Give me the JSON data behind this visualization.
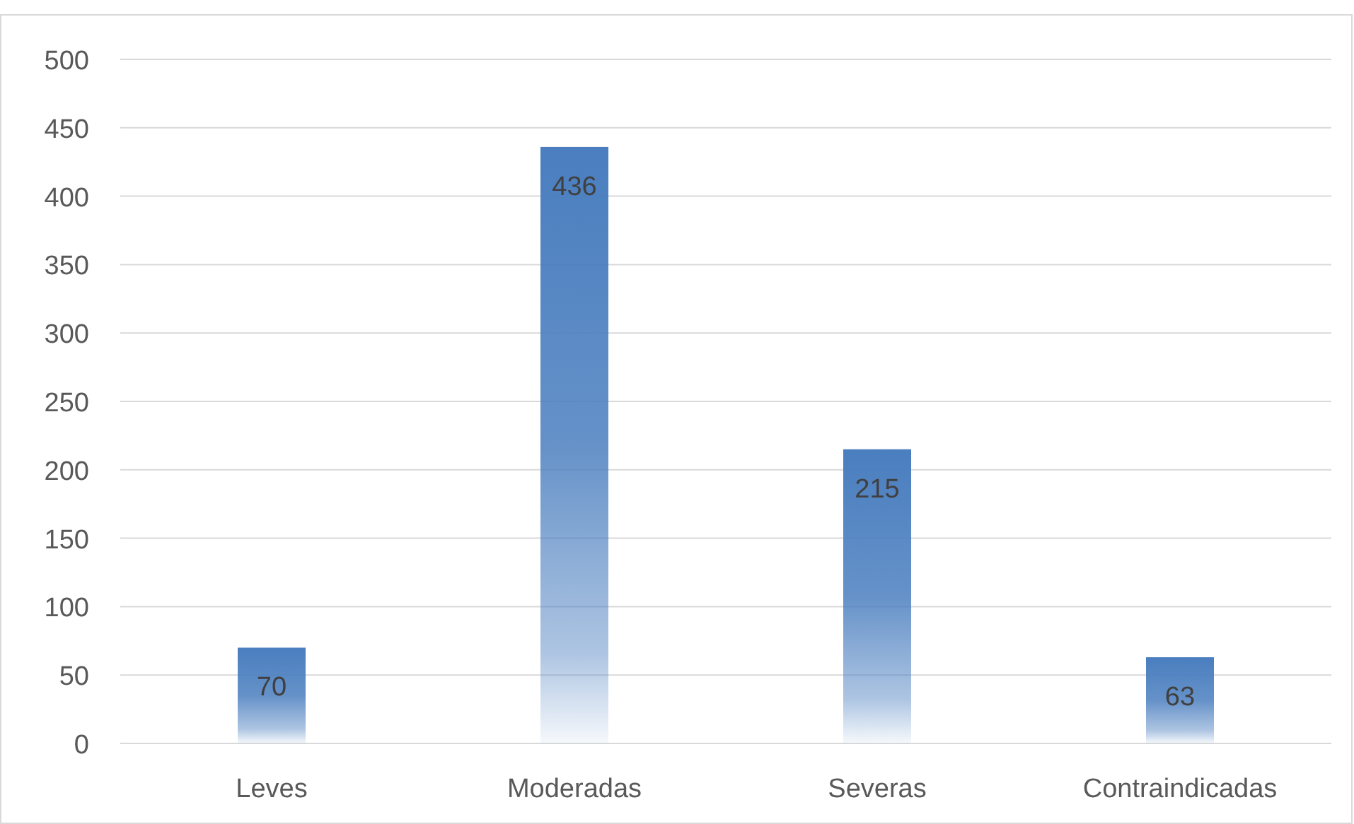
{
  "chart_data": {
    "type": "bar",
    "categories": [
      "Leves",
      "Moderadas",
      "Severas",
      "Contraindicadas"
    ],
    "values": [
      70,
      436,
      215,
      63
    ],
    "color": "#4a7ebf",
    "ylim": [
      0,
      500
    ],
    "yticks": [
      0,
      50,
      100,
      150,
      200,
      250,
      300,
      350,
      400,
      450,
      500
    ],
    "grid": "y",
    "data_labels": true
  }
}
